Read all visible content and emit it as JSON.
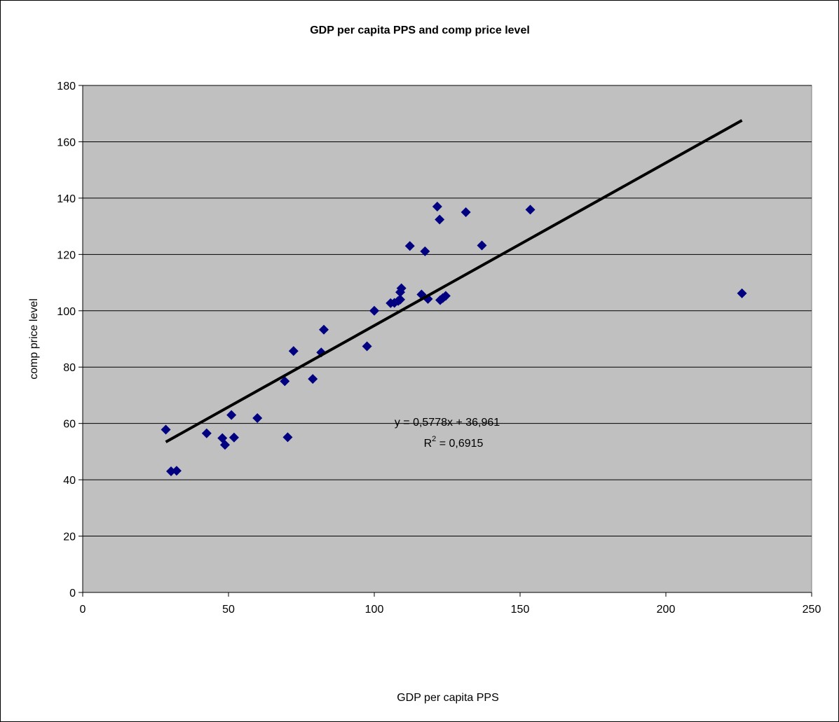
{
  "chart_data": {
    "type": "scatter",
    "title": "GDP per capita PPS and comp price level",
    "xlabel": "GDP per capita PPS",
    "ylabel": "comp price level",
    "xlim": [
      0,
      250
    ],
    "ylim": [
      0,
      180
    ],
    "xticks": [
      0,
      50,
      100,
      150,
      200,
      250
    ],
    "yticks": [
      0,
      20,
      40,
      60,
      80,
      100,
      120,
      140,
      160,
      180
    ],
    "grid": "horizontal",
    "plot_background": "#C0C0C0",
    "marker_color": "#000080",
    "trendline_color": "#000000",
    "points": [
      {
        "x": 28.5,
        "y": 57.8
      },
      {
        "x": 30.3,
        "y": 43.0
      },
      {
        "x": 32.2,
        "y": 43.2
      },
      {
        "x": 42.5,
        "y": 56.5
      },
      {
        "x": 47.9,
        "y": 54.8
      },
      {
        "x": 48.8,
        "y": 52.4
      },
      {
        "x": 51.0,
        "y": 63.0
      },
      {
        "x": 51.9,
        "y": 55.0
      },
      {
        "x": 59.9,
        "y": 61.9
      },
      {
        "x": 69.3,
        "y": 75.0
      },
      {
        "x": 70.3,
        "y": 55.1
      },
      {
        "x": 72.3,
        "y": 85.7
      },
      {
        "x": 78.9,
        "y": 75.8
      },
      {
        "x": 81.8,
        "y": 85.2
      },
      {
        "x": 82.7,
        "y": 93.3
      },
      {
        "x": 97.5,
        "y": 87.4
      },
      {
        "x": 100.0,
        "y": 100.0
      },
      {
        "x": 105.6,
        "y": 102.7
      },
      {
        "x": 106.9,
        "y": 102.8
      },
      {
        "x": 108.2,
        "y": 103.5
      },
      {
        "x": 108.9,
        "y": 104.0
      },
      {
        "x": 108.9,
        "y": 106.6
      },
      {
        "x": 109.3,
        "y": 108.0
      },
      {
        "x": 112.2,
        "y": 123.0
      },
      {
        "x": 116.2,
        "y": 105.8
      },
      {
        "x": 117.4,
        "y": 121.1
      },
      {
        "x": 118.4,
        "y": 104.2
      },
      {
        "x": 121.6,
        "y": 137.0
      },
      {
        "x": 122.4,
        "y": 132.4
      },
      {
        "x": 122.6,
        "y": 103.8
      },
      {
        "x": 123.5,
        "y": 104.5
      },
      {
        "x": 124.5,
        "y": 105.3
      },
      {
        "x": 131.4,
        "y": 135.0
      },
      {
        "x": 136.9,
        "y": 123.2
      },
      {
        "x": 153.5,
        "y": 135.9
      },
      {
        "x": 226.1,
        "y": 106.2
      }
    ],
    "trendline": {
      "slope": 0.5778,
      "intercept": 36.961,
      "x_start": 28.5,
      "x_end": 226.1,
      "equation_label": "y = 0,5778x + 36,961",
      "r2_prefix": "R",
      "r2_sup": "2",
      "r2_value": " = 0,6915"
    }
  }
}
